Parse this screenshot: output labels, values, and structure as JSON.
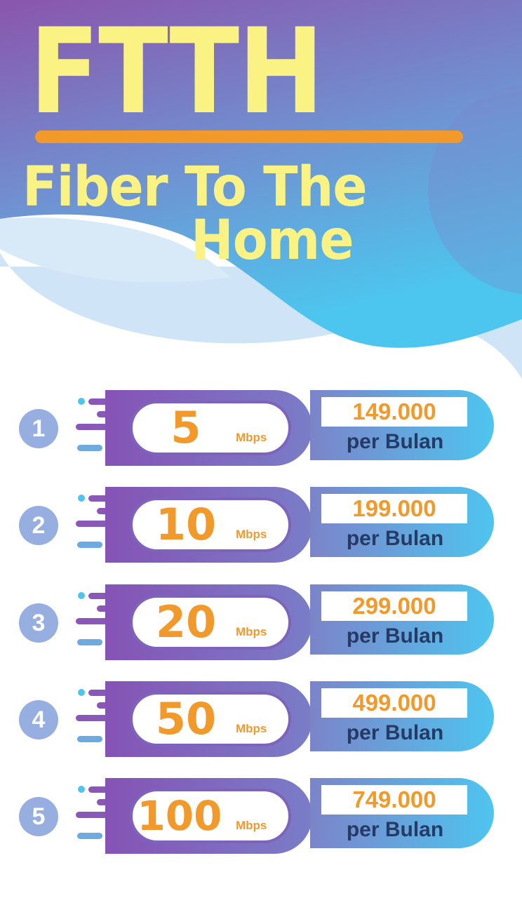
{
  "header": {
    "title": "FTTH",
    "subtitle_line1": "Fiber To The",
    "subtitle_line2": "Home"
  },
  "unit": "Mbps",
  "period": "per Bulan",
  "plans": [
    {
      "number": "1",
      "speed": "5",
      "price": "149.000"
    },
    {
      "number": "2",
      "speed": "10",
      "price": "199.000"
    },
    {
      "number": "3",
      "speed": "20",
      "price": "299.000"
    },
    {
      "number": "4",
      "speed": "50",
      "price": "499.000"
    },
    {
      "number": "5",
      "speed": "100",
      "price": "749.000"
    }
  ],
  "colors": {
    "title": "#faf384",
    "accent": "#f19a2b",
    "purple": "#8553b5",
    "blue": "#4ec5ef",
    "text_dark": "#263a66",
    "badge": "#96aee0"
  }
}
